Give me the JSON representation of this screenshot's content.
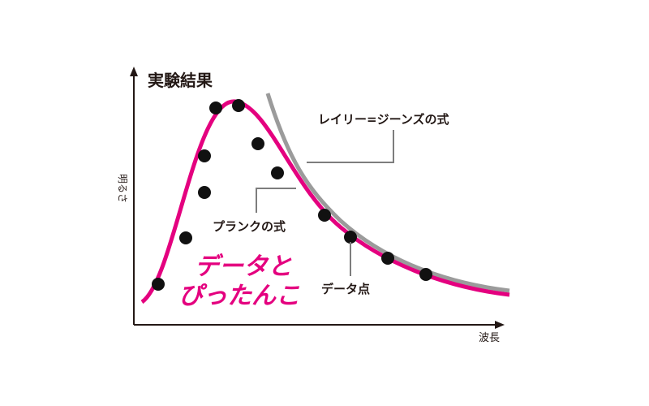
{
  "title": "実験結果",
  "y_axis_label": "明るさ",
  "x_axis_label": "波長",
  "labels": {
    "rayleigh_jeans": "レイリー=ジーンズの式",
    "planck": "プランクの式",
    "data_points": "データ点"
  },
  "annotation": [
    "データと",
    "ぴったんこ"
  ]
}
